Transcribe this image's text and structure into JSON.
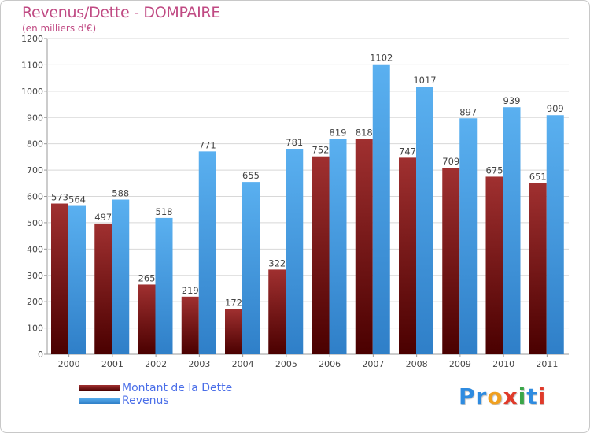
{
  "header": {
    "title": "Revenus/Dette - DOMPAIRE",
    "subtitle": "(en milliers d'€)"
  },
  "legend": {
    "items": [
      {
        "label": "Montant de la Dette",
        "color": "#7a1010"
      },
      {
        "label": "Revenus",
        "color": "#4aa3e8"
      }
    ]
  },
  "logo": {
    "letters": [
      {
        "ch": "P",
        "color": "#2e8be0"
      },
      {
        "ch": "r",
        "color": "#2e8be0"
      },
      {
        "ch": "o",
        "color": "#f0a020"
      },
      {
        "ch": "x",
        "color": "#e03a2a"
      },
      {
        "ch": "i",
        "color": "#3aa648"
      },
      {
        "ch": "t",
        "color": "#2e8be0"
      },
      {
        "ch": "i",
        "color": "#e03a2a"
      }
    ]
  },
  "chart_data": {
    "type": "bar",
    "title": "Revenus/Dette - DOMPAIRE",
    "subtitle": "(en milliers d'€)",
    "categories": [
      "2000",
      "2001",
      "2002",
      "2003",
      "2004",
      "2005",
      "2006",
      "2007",
      "2008",
      "2009",
      "2010",
      "2011"
    ],
    "series": [
      {
        "name": "Montant de la Dette",
        "color": "#7a1010",
        "values": [
          573,
          497,
          265,
          219,
          172,
          322,
          752,
          818,
          747,
          709,
          675,
          651
        ]
      },
      {
        "name": "Revenus",
        "color": "#4aa3e8",
        "values": [
          564,
          588,
          518,
          771,
          655,
          781,
          819,
          1102,
          1017,
          897,
          939,
          909
        ]
      }
    ],
    "yticks": [
      0,
      100,
      200,
      300,
      400,
      500,
      600,
      700,
      800,
      900,
      1000,
      1100,
      1200
    ],
    "ylim": [
      0,
      1200
    ],
    "grid": true,
    "legend_position": "bottom-left"
  }
}
